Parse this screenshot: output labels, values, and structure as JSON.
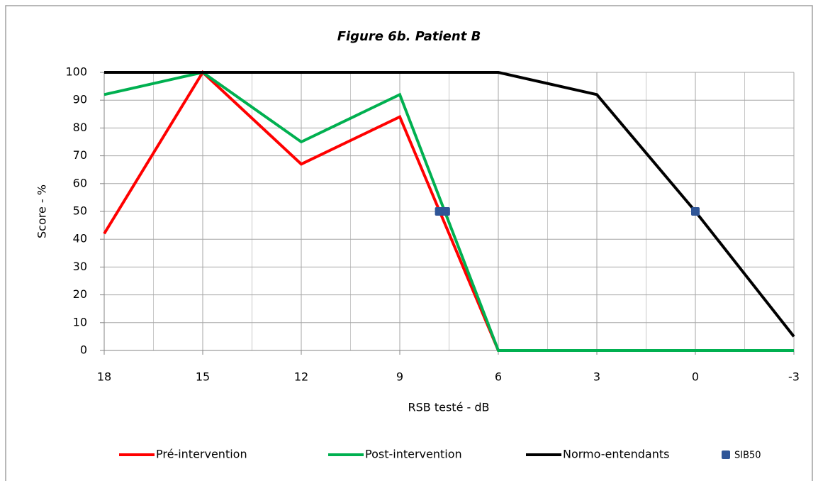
{
  "chart_data": {
    "type": "line",
    "title": "Figure 6b. Patient B",
    "xlabel": "RSB testé - dB",
    "ylabel": "Score - %",
    "x": [
      18,
      15,
      12,
      9,
      6,
      3,
      0,
      -3
    ],
    "series": [
      {
        "name": "Pré-intervention",
        "color": "#ff0000",
        "values": [
          42,
          100,
          67,
          84,
          0,
          0,
          0,
          0
        ]
      },
      {
        "name": "Post-intervention",
        "color": "#00b050",
        "values": [
          92,
          100,
          75,
          92,
          0,
          0,
          0,
          0
        ]
      },
      {
        "name": "Normo-entendants",
        "color": "#000000",
        "values": [
          100,
          100,
          100,
          100,
          100,
          92,
          50,
          5
        ]
      },
      {
        "name": "SIB50",
        "type": "scatter",
        "color": "#2f5597",
        "x": [
          7.8,
          7.6,
          0
        ],
        "values": [
          50,
          50,
          50
        ]
      }
    ],
    "xlim": [
      18,
      -3
    ],
    "xticks": [
      18,
      15,
      12,
      9,
      6,
      3,
      0,
      -3
    ],
    "ylim": [
      0,
      100
    ],
    "yticks": [
      0,
      10,
      20,
      30,
      40,
      50,
      60,
      70,
      80,
      90,
      100
    ],
    "grid": true,
    "legend": "bottom"
  }
}
